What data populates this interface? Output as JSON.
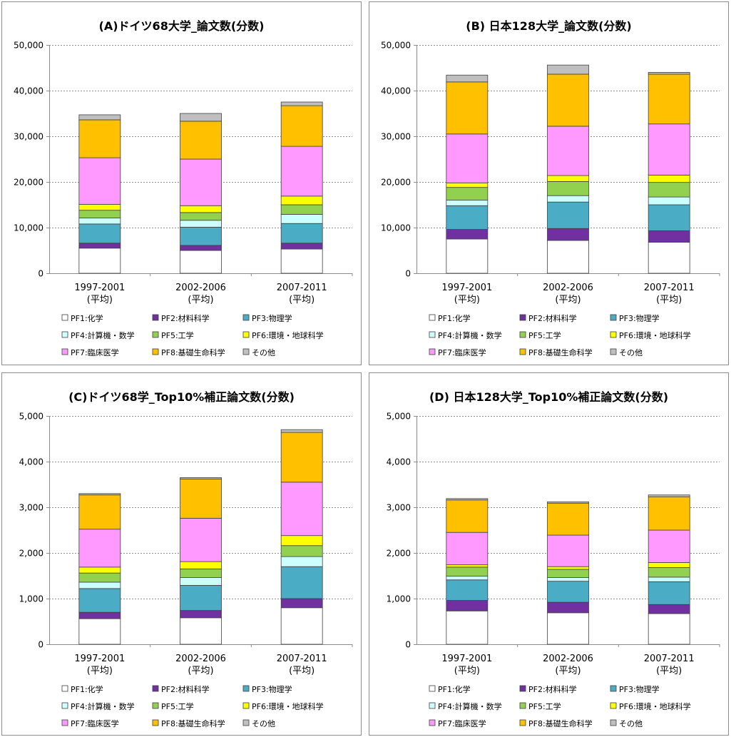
{
  "chart_data": [
    {
      "type": "bar",
      "stacked": true,
      "title": "(A)ドイツ68大学_論文数(分数)",
      "categories": [
        [
          "1997-2001",
          "(平均)"
        ],
        [
          "2002-2006",
          "(平均)"
        ],
        [
          "2007-2011",
          "(平均)"
        ]
      ],
      "ylim": [
        0,
        50000
      ],
      "yticks": [
        "0",
        "10,000",
        "20,000",
        "30,000",
        "40,000",
        "50,000"
      ],
      "grid": true,
      "legend_position": "bottom",
      "series": [
        {
          "name": "PF1:化学",
          "color": "#ffffff",
          "values": [
            5500,
            5000,
            5300
          ]
        },
        {
          "name": "PF2:材料科学",
          "color": "#7030a0",
          "values": [
            1100,
            1100,
            1300
          ]
        },
        {
          "name": "PF3:物理学",
          "color": "#4bacc6",
          "values": [
            4200,
            4000,
            4300
          ]
        },
        {
          "name": "PF4:計算機・数学",
          "color": "#ccffff",
          "values": [
            1300,
            1500,
            2000
          ]
        },
        {
          "name": "PF5:工学",
          "color": "#92d050",
          "values": [
            1700,
            1700,
            2100
          ]
        },
        {
          "name": "PF6:環境・地球科学",
          "color": "#ffff00",
          "values": [
            1300,
            1500,
            1900
          ]
        },
        {
          "name": "PF7:臨床医学",
          "color": "#ff99ff",
          "values": [
            10200,
            10200,
            10900
          ]
        },
        {
          "name": "PF8:基礎生命科学",
          "color": "#ffc000",
          "values": [
            8300,
            8300,
            8900
          ]
        },
        {
          "name": "その他",
          "color": "#bfbfbf",
          "values": [
            1100,
            1700,
            800
          ]
        }
      ]
    },
    {
      "type": "bar",
      "stacked": true,
      "title": "(B) 日本128大学_論文数(分数)",
      "categories": [
        [
          "1997-2001",
          "(平均)"
        ],
        [
          "2002-2006",
          "(平均)"
        ],
        [
          "2007-2011",
          "(平均)"
        ]
      ],
      "ylim": [
        0,
        50000
      ],
      "yticks": [
        "0",
        "10,000",
        "20,000",
        "30,000",
        "40,000",
        "50,000"
      ],
      "grid": true,
      "legend_position": "bottom",
      "series": [
        {
          "name": "PF1:化学",
          "color": "#ffffff",
          "values": [
            7500,
            7200,
            6800
          ]
        },
        {
          "name": "PF2:材料科学",
          "color": "#7030a0",
          "values": [
            2100,
            2600,
            2500
          ]
        },
        {
          "name": "PF3:物理学",
          "color": "#4bacc6",
          "values": [
            5200,
            5800,
            5700
          ]
        },
        {
          "name": "PF4:計算機・数学",
          "color": "#ccffff",
          "values": [
            1200,
            1400,
            1700
          ]
        },
        {
          "name": "PF5:工学",
          "color": "#92d050",
          "values": [
            2800,
            3100,
            3200
          ]
        },
        {
          "name": "PF6:環境・地球科学",
          "color": "#ffff00",
          "values": [
            1000,
            1300,
            1600
          ]
        },
        {
          "name": "PF7:臨床医学",
          "color": "#ff99ff",
          "values": [
            10700,
            10800,
            11200
          ]
        },
        {
          "name": "PF8:基礎生命科学",
          "color": "#ffc000",
          "values": [
            11400,
            11400,
            10900
          ]
        },
        {
          "name": "その他",
          "color": "#bfbfbf",
          "values": [
            1500,
            2000,
            400
          ]
        }
      ]
    },
    {
      "type": "bar",
      "stacked": true,
      "title": "(C)ドイツ68学_Top10%補正論文数(分数)",
      "categories": [
        [
          "1997-2001",
          "(平均)"
        ],
        [
          "2002-2006",
          "(平均)"
        ],
        [
          "2007-2011",
          "(平均)"
        ]
      ],
      "ylim": [
        0,
        5000
      ],
      "yticks": [
        "0",
        "1,000",
        "2,000",
        "3,000",
        "4,000",
        "5,000"
      ],
      "grid": true,
      "legend_position": "bottom",
      "series": [
        {
          "name": "PF1:化学",
          "color": "#ffffff",
          "values": [
            560,
            580,
            800
          ]
        },
        {
          "name": "PF2:材料科学",
          "color": "#7030a0",
          "values": [
            140,
            160,
            200
          ]
        },
        {
          "name": "PF3:物理学",
          "color": "#4bacc6",
          "values": [
            520,
            550,
            700
          ]
        },
        {
          "name": "PF4:計算機・数学",
          "color": "#ccffff",
          "values": [
            140,
            170,
            220
          ]
        },
        {
          "name": "PF5:工学",
          "color": "#92d050",
          "values": [
            200,
            190,
            240
          ]
        },
        {
          "name": "PF6:環境・地球科学",
          "color": "#ffff00",
          "values": [
            130,
            160,
            220
          ]
        },
        {
          "name": "PF7:臨床医学",
          "color": "#ff99ff",
          "values": [
            830,
            950,
            1170
          ]
        },
        {
          "name": "PF8:基礎生命科学",
          "color": "#ffc000",
          "values": [
            750,
            860,
            1090
          ]
        },
        {
          "name": "その他",
          "color": "#bfbfbf",
          "values": [
            30,
            30,
            60
          ]
        }
      ]
    },
    {
      "type": "bar",
      "stacked": true,
      "title": "(D) 日本128大学_Top10%補正論文数(分数)",
      "categories": [
        [
          "1997-2001",
          "(平均)"
        ],
        [
          "2002-2006",
          "(平均)"
        ],
        [
          "2007-2011",
          "(平均)"
        ]
      ],
      "ylim": [
        0,
        5000
      ],
      "yticks": [
        "0",
        "1,000",
        "2,000",
        "3,000",
        "4,000",
        "5,000"
      ],
      "grid": true,
      "legend_position": "bottom",
      "series": [
        {
          "name": "PF1:化学",
          "color": "#ffffff",
          "values": [
            730,
            690,
            670
          ]
        },
        {
          "name": "PF2:材料科学",
          "color": "#7030a0",
          "values": [
            230,
            230,
            200
          ]
        },
        {
          "name": "PF3:物理学",
          "color": "#4bacc6",
          "values": [
            450,
            460,
            500
          ]
        },
        {
          "name": "PF4:計算機・数学",
          "color": "#ccffff",
          "values": [
            80,
            80,
            100
          ]
        },
        {
          "name": "PF5:工学",
          "color": "#92d050",
          "values": [
            200,
            180,
            210
          ]
        },
        {
          "name": "PF6:環境・地球科学",
          "color": "#ffff00",
          "values": [
            50,
            60,
            110
          ]
        },
        {
          "name": "PF7:臨床医学",
          "color": "#ff99ff",
          "values": [
            710,
            690,
            710
          ]
        },
        {
          "name": "PF8:基礎生命科学",
          "color": "#ffc000",
          "values": [
            710,
            700,
            730
          ]
        },
        {
          "name": "その他",
          "color": "#bfbfbf",
          "values": [
            30,
            30,
            40
          ]
        }
      ]
    }
  ]
}
